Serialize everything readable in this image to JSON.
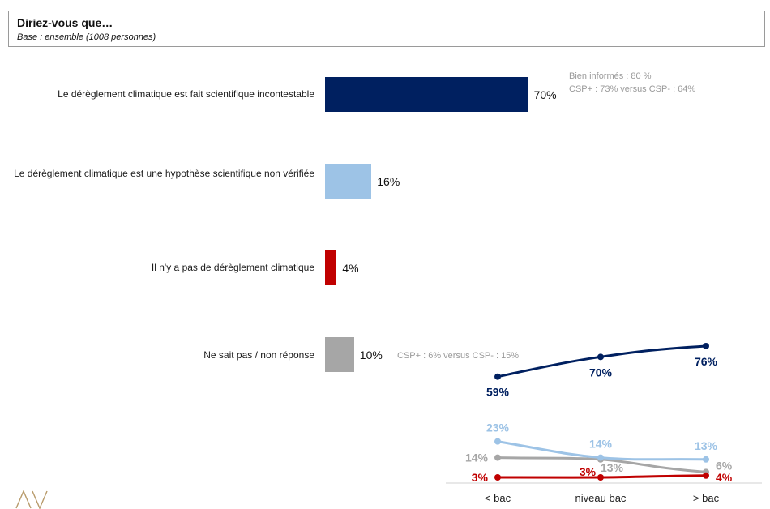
{
  "header": {
    "title": "Diriez-vous que…",
    "subtitle": "Base : ensemble (1008 personnes)"
  },
  "chart_data": [
    {
      "type": "bar",
      "orientation": "horizontal",
      "categories": [
        "Le dérèglement climatique est fait scientifique incontestable",
        "Le dérèglement climatique est une hypothèse scientifique non vérifiée",
        "Il n'y a pas de dérèglement climatique",
        "Ne sait pas / non réponse"
      ],
      "values": [
        70,
        16,
        4,
        10
      ],
      "value_labels": [
        "70%",
        "16%",
        "4%",
        "10%"
      ],
      "colors": [
        "#002060",
        "#9dc3e6",
        "#c00000",
        "#a6a6a6"
      ],
      "annotations": [
        [
          "Bien informés : 80 %",
          "CSP+ : 73% versus CSP- : 64%"
        ],
        [],
        [],
        [
          "CSP+ : 6% versus CSP- : 15%"
        ]
      ],
      "xlim": [
        0,
        100
      ]
    },
    {
      "type": "line",
      "categories": [
        "< bac",
        "niveau bac",
        "> bac"
      ],
      "series": [
        {
          "values": [
            59,
            70,
            76
          ],
          "labels": [
            "59%",
            "70%",
            "76%"
          ],
          "color": "#002060"
        },
        {
          "values": [
            23,
            14,
            13
          ],
          "labels": [
            "23%",
            "14%",
            "13%"
          ],
          "color": "#9dc3e6"
        },
        {
          "values": [
            14,
            13,
            6
          ],
          "labels": [
            "14%",
            "13%",
            "6%"
          ],
          "color": "#a6a6a6"
        },
        {
          "values": [
            3,
            3,
            4
          ],
          "labels": [
            "3%",
            "3%",
            "4%"
          ],
          "color": "#c00000"
        }
      ]
    }
  ],
  "logo": {
    "text": "AV",
    "color": "#b89a6a"
  }
}
